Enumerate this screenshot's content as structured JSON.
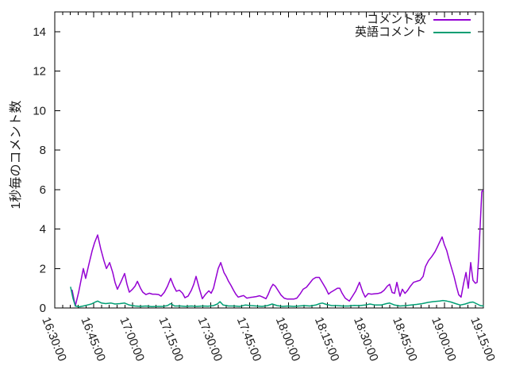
{
  "chart_data": {
    "type": "line",
    "title": "",
    "xlabel": "",
    "ylabel": "1秒毎のコメント数",
    "ylim": [
      0,
      15
    ],
    "yticks": [
      0,
      2,
      4,
      6,
      8,
      10,
      12,
      14
    ],
    "grid": false,
    "legend_position": "top-right-inside",
    "x_axis": {
      "start_time": "16:30:00",
      "end_time": "19:15:00",
      "major_tick_minutes": 15,
      "minor_tick_minutes": 3,
      "total_minutes": 165,
      "tick_labels": [
        "16:30:00",
        "16:45:00",
        "17:00:00",
        "17:15:00",
        "17:30:00",
        "17:45:00",
        "18:00:00",
        "18:15:00",
        "18:30:00",
        "18:45:00",
        "19:00:00",
        "19:15:00"
      ]
    },
    "x_unit": "minutes_after_16:30:00",
    "series": [
      {
        "name": "コメント数",
        "color": "#9400d3",
        "points": [
          [
            6.7,
            0.9
          ],
          [
            7.9,
            0.1
          ],
          [
            9.2,
            0.8
          ],
          [
            11,
            2
          ],
          [
            11.9,
            1.5
          ],
          [
            13.1,
            2.2
          ],
          [
            14.4,
            2.9
          ],
          [
            15.3,
            3.3
          ],
          [
            16.5,
            3.7
          ],
          [
            17.7,
            3
          ],
          [
            18.9,
            2.4
          ],
          [
            19.9,
            2
          ],
          [
            21.1,
            2.3
          ],
          [
            22.3,
            1.8
          ],
          [
            23.2,
            1.3
          ],
          [
            24.1,
            0.95
          ],
          [
            25.4,
            1.3
          ],
          [
            26.9,
            1.75
          ],
          [
            27.8,
            1.2
          ],
          [
            28.7,
            0.8
          ],
          [
            29.9,
            0.95
          ],
          [
            30.9,
            1.1
          ],
          [
            31.8,
            1.35
          ],
          [
            33,
            1
          ],
          [
            33.9,
            0.8
          ],
          [
            35.1,
            0.68
          ],
          [
            36.4,
            0.75
          ],
          [
            37.6,
            0.7
          ],
          [
            38.8,
            0.7
          ],
          [
            40,
            0.68
          ],
          [
            40.9,
            0.6
          ],
          [
            42.2,
            0.8
          ],
          [
            43.4,
            1.1
          ],
          [
            44.6,
            1.5
          ],
          [
            45.8,
            1.1
          ],
          [
            46.8,
            0.85
          ],
          [
            48,
            0.9
          ],
          [
            49.2,
            0.75
          ],
          [
            50.1,
            0.52
          ],
          [
            51.3,
            0.6
          ],
          [
            52.6,
            0.9
          ],
          [
            53.5,
            1.2
          ],
          [
            54.4,
            1.6
          ],
          [
            55.6,
            1
          ],
          [
            56.8,
            0.47
          ],
          [
            58.1,
            0.7
          ],
          [
            59.3,
            0.87
          ],
          [
            60.2,
            0.75
          ],
          [
            61.1,
            1
          ],
          [
            62,
            1.5
          ],
          [
            62.9,
            2
          ],
          [
            63.9,
            2.3
          ],
          [
            65.1,
            1.8
          ],
          [
            66,
            1.6
          ],
          [
            66.9,
            1.35
          ],
          [
            67.8,
            1.15
          ],
          [
            68.8,
            0.9
          ],
          [
            69.7,
            0.7
          ],
          [
            70.6,
            0.55
          ],
          [
            71.8,
            0.6
          ],
          [
            72.7,
            0.63
          ],
          [
            73.9,
            0.5
          ],
          [
            75.2,
            0.53
          ],
          [
            76.4,
            0.55
          ],
          [
            77.6,
            0.58
          ],
          [
            78.8,
            0.62
          ],
          [
            80.1,
            0.55
          ],
          [
            81.3,
            0.47
          ],
          [
            82.2,
            0.7
          ],
          [
            83.1,
            1
          ],
          [
            84,
            1.2
          ],
          [
            84.9,
            1.1
          ],
          [
            85.9,
            0.9
          ],
          [
            87.1,
            0.65
          ],
          [
            88.3,
            0.5
          ],
          [
            89.5,
            0.45
          ],
          [
            90.8,
            0.45
          ],
          [
            92,
            0.45
          ],
          [
            93.2,
            0.5
          ],
          [
            94.4,
            0.7
          ],
          [
            95.6,
            0.95
          ],
          [
            96.9,
            1.05
          ],
          [
            98.1,
            1.25
          ],
          [
            99.3,
            1.45
          ],
          [
            100.5,
            1.55
          ],
          [
            101.8,
            1.55
          ],
          [
            102.7,
            1.35
          ],
          [
            103.6,
            1.15
          ],
          [
            104.5,
            0.95
          ],
          [
            105.4,
            0.7
          ],
          [
            106.3,
            0.8
          ],
          [
            107.6,
            0.9
          ],
          [
            108.8,
            1
          ],
          [
            109.7,
            1
          ],
          [
            110.6,
            0.75
          ],
          [
            111.8,
            0.5
          ],
          [
            113.4,
            0.35
          ],
          [
            114.6,
            0.6
          ],
          [
            115.8,
            0.85
          ],
          [
            117.3,
            1.3
          ],
          [
            118.6,
            0.8
          ],
          [
            119.5,
            0.55
          ],
          [
            120.7,
            0.73
          ],
          [
            121.9,
            0.7
          ],
          [
            123.1,
            0.72
          ],
          [
            124.4,
            0.73
          ],
          [
            125.6,
            0.78
          ],
          [
            126.8,
            0.9
          ],
          [
            128,
            1.1
          ],
          [
            128.9,
            1.2
          ],
          [
            129.9,
            0.78
          ],
          [
            130.8,
            0.74
          ],
          [
            131.7,
            1.3
          ],
          [
            132.9,
            0.6
          ],
          [
            133.8,
            0.95
          ],
          [
            134.8,
            0.74
          ],
          [
            135.7,
            0.87
          ],
          [
            136.9,
            1.1
          ],
          [
            138.1,
            1.3
          ],
          [
            139.3,
            1.35
          ],
          [
            140.6,
            1.4
          ],
          [
            141.8,
            1.6
          ],
          [
            142.7,
            2.1
          ],
          [
            143.9,
            2.4
          ],
          [
            145.1,
            2.6
          ],
          [
            146.4,
            2.85
          ],
          [
            147.3,
            3.1
          ],
          [
            148.2,
            3.35
          ],
          [
            149.1,
            3.6
          ],
          [
            150,
            3.2
          ],
          [
            150.9,
            2.9
          ],
          [
            151.8,
            2.45
          ],
          [
            152.8,
            2
          ],
          [
            153.7,
            1.6
          ],
          [
            154.6,
            1.1
          ],
          [
            155.5,
            0.67
          ],
          [
            156.4,
            0.55
          ],
          [
            157.4,
            1.25
          ],
          [
            158.3,
            1.8
          ],
          [
            159.2,
            1
          ],
          [
            160.1,
            2.3
          ],
          [
            161,
            1.4
          ],
          [
            161.9,
            1.25
          ],
          [
            162.6,
            1.3
          ],
          [
            163.2,
            2.6
          ],
          [
            163.8,
            4.3
          ],
          [
            164.4,
            5.9
          ],
          [
            165,
            5.95
          ]
        ]
      },
      {
        "name": "英語コメント",
        "color": "#009e73",
        "points": [
          [
            6.1,
            1.05
          ],
          [
            7,
            0.5
          ],
          [
            7.9,
            0.1
          ],
          [
            9.5,
            0.06
          ],
          [
            11,
            0.1
          ],
          [
            12.5,
            0.15
          ],
          [
            14.1,
            0.2
          ],
          [
            15.6,
            0.3
          ],
          [
            16.5,
            0.35
          ],
          [
            18,
            0.25
          ],
          [
            19.6,
            0.22
          ],
          [
            21.7,
            0.25
          ],
          [
            23.2,
            0.2
          ],
          [
            25.1,
            0.22
          ],
          [
            26.9,
            0.25
          ],
          [
            28.7,
            0.15
          ],
          [
            30.9,
            0.1
          ],
          [
            33,
            0.08
          ],
          [
            35.1,
            0.1
          ],
          [
            37.3,
            0.07
          ],
          [
            39.4,
            0.08
          ],
          [
            41.6,
            0.08
          ],
          [
            43.4,
            0.12
          ],
          [
            44.6,
            0.22
          ],
          [
            46.1,
            0.1
          ],
          [
            48.3,
            0.1
          ],
          [
            50.4,
            0.08
          ],
          [
            52.6,
            0.1
          ],
          [
            54.7,
            0.08
          ],
          [
            56.8,
            0.1
          ],
          [
            59,
            0.09
          ],
          [
            61.1,
            0.12
          ],
          [
            62.6,
            0.2
          ],
          [
            63.6,
            0.32
          ],
          [
            64.8,
            0.15
          ],
          [
            66.9,
            0.1
          ],
          [
            69.1,
            0.1
          ],
          [
            71.2,
            0.08
          ],
          [
            73.3,
            0.15
          ],
          [
            75.5,
            0.12
          ],
          [
            77.6,
            0.1
          ],
          [
            79.8,
            0.08
          ],
          [
            81.9,
            0.12
          ],
          [
            83.7,
            0.2
          ],
          [
            85.6,
            0.12
          ],
          [
            87.7,
            0.08
          ],
          [
            89.8,
            0.1
          ],
          [
            92,
            0.08
          ],
          [
            94.1,
            0.1
          ],
          [
            96,
            0.12
          ],
          [
            98.2,
            0.1
          ],
          [
            100.5,
            0.15
          ],
          [
            102,
            0.22
          ],
          [
            103,
            0.25
          ],
          [
            104.5,
            0.18
          ],
          [
            106.6,
            0.12
          ],
          [
            108.8,
            0.12
          ],
          [
            110.9,
            0.1
          ],
          [
            113.1,
            0.1
          ],
          [
            115.2,
            0.13
          ],
          [
            117.3,
            0.12
          ],
          [
            119.5,
            0.15
          ],
          [
            121.3,
            0.2
          ],
          [
            123.4,
            0.15
          ],
          [
            125.6,
            0.15
          ],
          [
            127.7,
            0.22
          ],
          [
            128.9,
            0.25
          ],
          [
            130.8,
            0.15
          ],
          [
            132.9,
            0.1
          ],
          [
            135.1,
            0.12
          ],
          [
            137.2,
            0.15
          ],
          [
            139.3,
            0.18
          ],
          [
            141.5,
            0.22
          ],
          [
            143.6,
            0.28
          ],
          [
            145.7,
            0.32
          ],
          [
            148.2,
            0.35
          ],
          [
            149.4,
            0.38
          ],
          [
            150.9,
            0.35
          ],
          [
            152.5,
            0.3
          ],
          [
            154.3,
            0.22
          ],
          [
            156.1,
            0.15
          ],
          [
            158,
            0.2
          ],
          [
            159.8,
            0.28
          ],
          [
            161,
            0.3
          ],
          [
            162.6,
            0.2
          ],
          [
            163.8,
            0.12
          ],
          [
            165,
            0.1
          ]
        ]
      }
    ]
  },
  "colors": {
    "background": "#ffffff",
    "axis": "#000000",
    "text": "#1a1a1a",
    "series1": "#9400d3",
    "series2": "#009e73"
  }
}
